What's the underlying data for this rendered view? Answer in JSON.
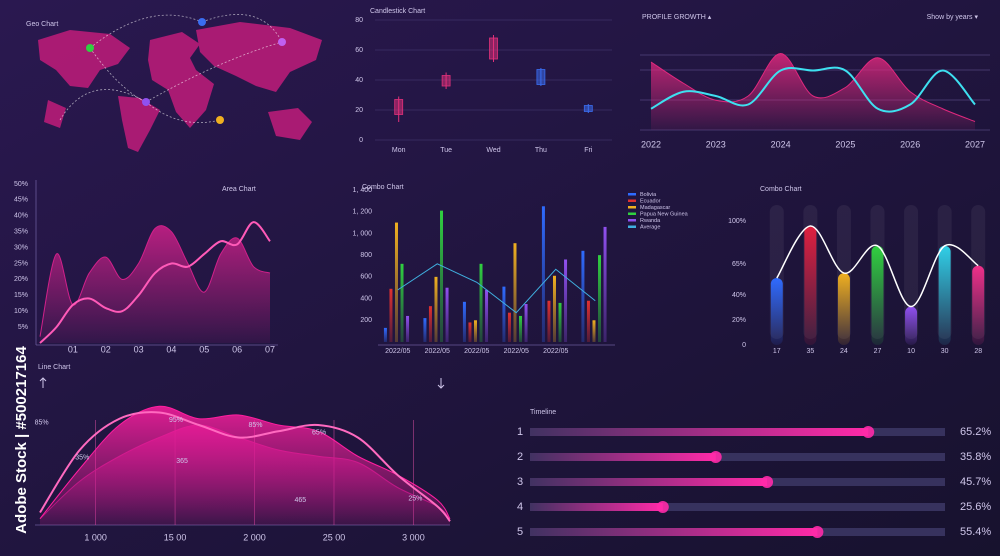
{
  "watermark": "Adobe Stock | #500217164",
  "chart_data": [
    {
      "type": "map",
      "title": "Geo Chart"
    },
    {
      "type": "candlestick",
      "title": "Candlestick Chart",
      "categories": [
        "Mon",
        "Tue",
        "Wed",
        "Thu",
        "Fri"
      ],
      "open": [
        17,
        36,
        54,
        37,
        19
      ],
      "close": [
        27,
        43,
        68,
        47,
        23
      ],
      "high": [
        29,
        45,
        70,
        48,
        24
      ],
      "low": [
        12,
        34,
        52,
        36,
        18
      ],
      "colors": [
        "#e0307a",
        "#e0307a",
        "#e0307a",
        "#3a6df0",
        "#3a6df0"
      ],
      "ylim": [
        0,
        80
      ],
      "yticks": [
        0,
        20,
        40,
        60,
        80
      ],
      "grid": true
    },
    {
      "type": "area",
      "title": "PROFILE GROWTH ▴",
      "menu_label": "Show by years ▾",
      "x": [
        2022,
        2022.5,
        2023,
        2023.5,
        2024,
        2024.5,
        2025,
        2025.5,
        2026,
        2026.5,
        2027
      ],
      "xlim": [
        2022,
        2027
      ],
      "xticks": [
        2022,
        2023,
        2024,
        2025,
        2026,
        2027
      ],
      "ylim": [
        0,
        100
      ],
      "series": [
        {
          "color": "#e0287e",
          "fill": true,
          "values": [
            80,
            55,
            35,
            40,
            90,
            40,
            50,
            85,
            45,
            25,
            10
          ]
        },
        {
          "color": "#3ee0f0",
          "fill": false,
          "values": [
            25,
            45,
            40,
            30,
            70,
            70,
            70,
            25,
            30,
            70,
            30
          ]
        }
      ]
    },
    {
      "type": "area",
      "title": "Area Chart",
      "x": [
        0,
        0.5,
        1,
        1.5,
        2,
        2.5,
        3,
        3.5,
        4,
        4.5,
        5,
        5.5,
        6,
        6.5,
        7
      ],
      "xlim": [
        0,
        7
      ],
      "xticks": [
        {
          "value": 1,
          "label": "01"
        },
        {
          "value": 2,
          "label": "02"
        },
        {
          "value": 3,
          "label": "03"
        },
        {
          "value": 4,
          "label": "04"
        },
        {
          "value": 5,
          "label": "05"
        },
        {
          "value": 6,
          "label": "06"
        },
        {
          "value": 7,
          "label": "07"
        }
      ],
      "ylim": [
        0,
        50
      ],
      "yticks": [
        {
          "value": 50,
          "label": "50%"
        },
        {
          "value": 45,
          "label": "45%"
        },
        {
          "value": 40,
          "label": "40%"
        },
        {
          "value": 35,
          "label": "35%"
        },
        {
          "value": 30,
          "label": "30%"
        },
        {
          "value": 25,
          "label": "25%"
        },
        {
          "value": 20,
          "label": "20%"
        },
        {
          "value": 15,
          "label": "15%"
        },
        {
          "value": 10,
          "label": "10%"
        },
        {
          "value": 5,
          "label": "5%"
        }
      ],
      "series": [
        {
          "color": "#d0208a",
          "fill": true,
          "values": [
            2,
            28,
            12,
            22,
            27,
            20,
            25,
            36,
            35,
            25,
            16,
            28,
            33,
            24,
            22
          ]
        },
        {
          "color": "#ff5ab8",
          "fill": false,
          "values": [
            0,
            5,
            12,
            14,
            11,
            10,
            15,
            22,
            25,
            24,
            28,
            32,
            31,
            38,
            32
          ]
        }
      ]
    },
    {
      "type": "combo",
      "title": "Combo Chart",
      "categories": [
        "2022/05",
        "2022/05",
        "2022/05",
        "2022/05",
        "2022/05",
        null
      ],
      "ylim": [
        0,
        1400
      ],
      "yticks": [
        {
          "value": 1400,
          "label": "1, 400"
        },
        {
          "value": 1200,
          "label": "1, 200"
        },
        {
          "value": 1000,
          "label": "1, 000"
        },
        800,
        600,
        400,
        200
      ],
      "series": [
        {
          "name": "Bolivia",
          "color": "#2f6bff",
          "values": [
            130,
            220,
            370,
            510,
            1250,
            840
          ]
        },
        {
          "name": "Ecuador",
          "color": "#e03030",
          "values": [
            490,
            330,
            180,
            270,
            380,
            380
          ]
        },
        {
          "name": "Madagascar",
          "color": "#f0b020",
          "values": [
            1100,
            600,
            200,
            910,
            610,
            200
          ]
        },
        {
          "name": "Papua New Guinea",
          "color": "#30d040",
          "values": [
            720,
            1210,
            720,
            240,
            360,
            800
          ]
        },
        {
          "name": "Rwanda",
          "color": "#9050f0",
          "values": [
            240,
            500,
            480,
            350,
            760,
            1060
          ]
        },
        {
          "name": "Average",
          "color": "#40b0e0",
          "line": true,
          "values": [
            480,
            720,
            550,
            270,
            670,
            380
          ]
        }
      ]
    },
    {
      "type": "bar",
      "title": "Combo Chart",
      "categories": [
        "17",
        "35",
        "24",
        "27",
        "10",
        "30",
        "28"
      ],
      "values": [
        54,
        96,
        58,
        80,
        31,
        80,
        64
      ],
      "colors": [
        "#2f6bff",
        "#e02040",
        "#f0b020",
        "#30d040",
        "#9050f0",
        "#30d0e8",
        "#f0308a"
      ],
      "ylim": [
        0,
        100
      ],
      "yticks": [
        {
          "value": 100,
          "label": "100%"
        },
        {
          "value": 65,
          "label": "65%"
        },
        {
          "value": 40,
          "label": "40%"
        },
        {
          "value": 20,
          "label": "20%"
        },
        0
      ]
    },
    {
      "type": "area",
      "title": "Line Chart",
      "x": [
        650,
        900,
        1150,
        1400,
        1650,
        1900,
        2150,
        2400,
        2650,
        2900,
        3150,
        3230
      ],
      "xlim": [
        650,
        3230
      ],
      "xticks": [
        {
          "value": 1000,
          "label": "1 000"
        },
        {
          "value": 1500,
          "label": "15 00"
        },
        {
          "value": 2000,
          "label": "2 000"
        },
        {
          "value": 2500,
          "label": "25 00"
        },
        {
          "value": 3000,
          "label": "3 000"
        }
      ],
      "xgrid": true,
      "ylim": [
        0,
        100
      ],
      "series": [
        {
          "color": "#a0157a",
          "fill": true,
          "values": [
            5,
            35,
            55,
            70,
            80,
            70,
            60,
            55,
            50,
            30,
            15,
            5
          ]
        },
        {
          "color": "#ff1ea0",
          "fill": true,
          "values": [
            5,
            45,
            80,
            95,
            85,
            88,
            80,
            75,
            55,
            40,
            20,
            5
          ]
        },
        {
          "color": "#ff6ac0",
          "fill": false,
          "values": [
            10,
            60,
            85,
            90,
            80,
            70,
            75,
            80,
            70,
            40,
            15,
            3
          ]
        }
      ],
      "annotations": [
        {
          "x": 660,
          "y": 82,
          "label": "85%"
        },
        {
          "x": 916,
          "y": 54,
          "label": "35%"
        },
        {
          "x": 1506,
          "y": 84,
          "label": "95%"
        },
        {
          "x": 1544,
          "y": 51,
          "label": "365"
        },
        {
          "x": 2006,
          "y": 80,
          "label": "85%"
        },
        {
          "x": 2406,
          "y": 74,
          "label": "65%"
        },
        {
          "x": 2288,
          "y": 20,
          "label": "465"
        },
        {
          "x": 3012,
          "y": 21,
          "label": "25%"
        }
      ]
    },
    {
      "type": "hbar",
      "title": "Timeline",
      "categories": [
        "1",
        "2",
        "3",
        "4",
        "5"
      ],
      "values": [
        65.2,
        35.8,
        45.7,
        25.6,
        55.4
      ],
      "value_labels": [
        "65.2%",
        "35.8%",
        "45.7%",
        "25.6%",
        "55.4%"
      ],
      "xlim": [
        0,
        80
      ],
      "color": "#ff2aa8"
    }
  ]
}
